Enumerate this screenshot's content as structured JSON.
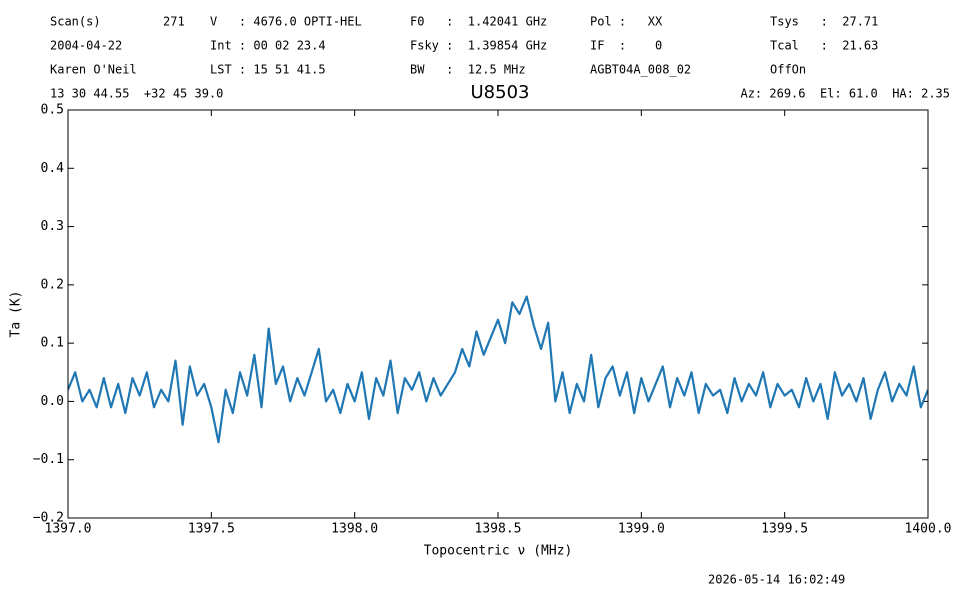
{
  "chart_data": {
    "type": "line",
    "title": "U8503",
    "annotations": [
      "Scan(s)",
      "271",
      "2004-04-22",
      "Karen O'Neil",
      "13 30 44.55  +32 45 39.0",
      "V   : 4676.0 OPTI-HEL",
      "Int : 00 02 23.4",
      "LST : 15 51 41.5",
      "F0   :  1.42041 GHz",
      "Fsky :  1.39854 GHz",
      "BW   :  12.5 MHz",
      "Pol :   XX",
      "IF  :    0",
      "AGBT04A_008_02",
      "Tsys   :  27.71",
      "Tcal   :  21.63",
      "OffOn",
      "Az: 269.6  El: 61.0  HA: 2.35",
      "2026-05-14 16:02:49"
    ],
    "xlabel": "Topocentric ν (MHz)",
    "ylabel": "Ta (K)",
    "color": "#1f77b4",
    "xlim": [
      1397,
      1400
    ],
    "ylim": [
      -0.2,
      0.5
    ],
    "xticks": [
      {
        "value": 1397,
        "label": "1397.0"
      },
      {
        "value": 1397.5,
        "label": "1397.5"
      },
      {
        "value": 1398,
        "label": "1398.0"
      },
      {
        "value": 1398.5,
        "label": "1398.5"
      },
      {
        "value": 1399,
        "label": "1399.0"
      },
      {
        "value": 1399.5,
        "label": "1399.5"
      },
      {
        "value": 1400,
        "label": "1400.0"
      }
    ],
    "yticks": [
      {
        "value": -0.2,
        "label": "−0.2"
      },
      {
        "value": -0.1,
        "label": "−0.1"
      },
      {
        "value": 0,
        "label": "0.0"
      },
      0.1,
      0.2,
      0.3,
      0.4,
      0.5
    ],
    "x": [
      1397,
      1397.025,
      1397.05,
      1397.075,
      1397.1,
      1397.125,
      1397.15,
      1397.175,
      1397.2,
      1397.225,
      1397.25,
      1397.275,
      1397.3,
      1397.325,
      1397.35,
      1397.375,
      1397.4,
      1397.425,
      1397.45,
      1397.475,
      1397.5,
      1397.525,
      1397.55,
      1397.575,
      1397.6,
      1397.625,
      1397.65,
      1397.675,
      1397.7,
      1397.725,
      1397.75,
      1397.775,
      1397.8,
      1397.825,
      1397.85,
      1397.875,
      1397.9,
      1397.925,
      1397.95,
      1397.975,
      1398,
      1398.025,
      1398.05,
      1398.075,
      1398.1,
      1398.125,
      1398.15,
      1398.175,
      1398.2,
      1398.225,
      1398.25,
      1398.275,
      1398.3,
      1398.325,
      1398.35,
      1398.375,
      1398.4,
      1398.425,
      1398.45,
      1398.475,
      1398.5,
      1398.525,
      1398.55,
      1398.575,
      1398.6,
      1398.625,
      1398.65,
      1398.675,
      1398.7,
      1398.725,
      1398.75,
      1398.775,
      1398.8,
      1398.825,
      1398.85,
      1398.875,
      1398.9,
      1398.925,
      1398.95,
      1398.975,
      1399,
      1399.025,
      1399.05,
      1399.075,
      1399.1,
      1399.125,
      1399.15,
      1399.175,
      1399.2,
      1399.225,
      1399.25,
      1399.275,
      1399.3,
      1399.325,
      1399.35,
      1399.375,
      1399.4,
      1399.425,
      1399.45,
      1399.475,
      1399.5,
      1399.525,
      1399.55,
      1399.575,
      1399.6,
      1399.625,
      1399.65,
      1399.675,
      1399.7,
      1399.725,
      1399.75,
      1399.775,
      1399.8,
      1399.825,
      1399.85,
      1399.875,
      1399.9,
      1399.925,
      1399.95,
      1399.975,
      1400
    ],
    "values": [
      0.02,
      0.05,
      0.0,
      0.02,
      -0.01,
      0.04,
      -0.01,
      0.03,
      -0.02,
      0.04,
      0.01,
      0.05,
      -0.01,
      0.02,
      0.0,
      0.07,
      -0.04,
      0.06,
      0.01,
      0.03,
      -0.01,
      -0.07,
      0.02,
      -0.02,
      0.05,
      0.01,
      0.08,
      -0.01,
      0.125,
      0.03,
      0.06,
      0.0,
      0.04,
      0.01,
      0.05,
      0.09,
      0.0,
      0.02,
      -0.02,
      0.03,
      0.0,
      0.05,
      -0.03,
      0.04,
      0.01,
      0.07,
      -0.02,
      0.04,
      0.02,
      0.05,
      0.0,
      0.04,
      0.01,
      0.03,
      0.05,
      0.09,
      0.06,
      0.12,
      0.08,
      0.11,
      0.14,
      0.1,
      0.17,
      0.15,
      0.18,
      0.13,
      0.09,
      0.135,
      0.0,
      0.05,
      -0.02,
      0.03,
      0.0,
      0.08,
      -0.01,
      0.04,
      0.06,
      0.01,
      0.05,
      -0.02,
      0.04,
      0.0,
      0.03,
      0.06,
      -0.01,
      0.04,
      0.01,
      0.05,
      -0.02,
      0.03,
      0.01,
      0.02,
      -0.02,
      0.04,
      0.0,
      0.03,
      0.01,
      0.05,
      -0.01,
      0.03,
      0.01,
      0.02,
      -0.01,
      0.04,
      0.0,
      0.03,
      -0.03,
      0.05,
      0.01,
      0.03,
      0.0,
      0.04,
      -0.03,
      0.02,
      0.05,
      0.0,
      0.03,
      0.01,
      0.06,
      -0.01,
      0.02
    ]
  }
}
